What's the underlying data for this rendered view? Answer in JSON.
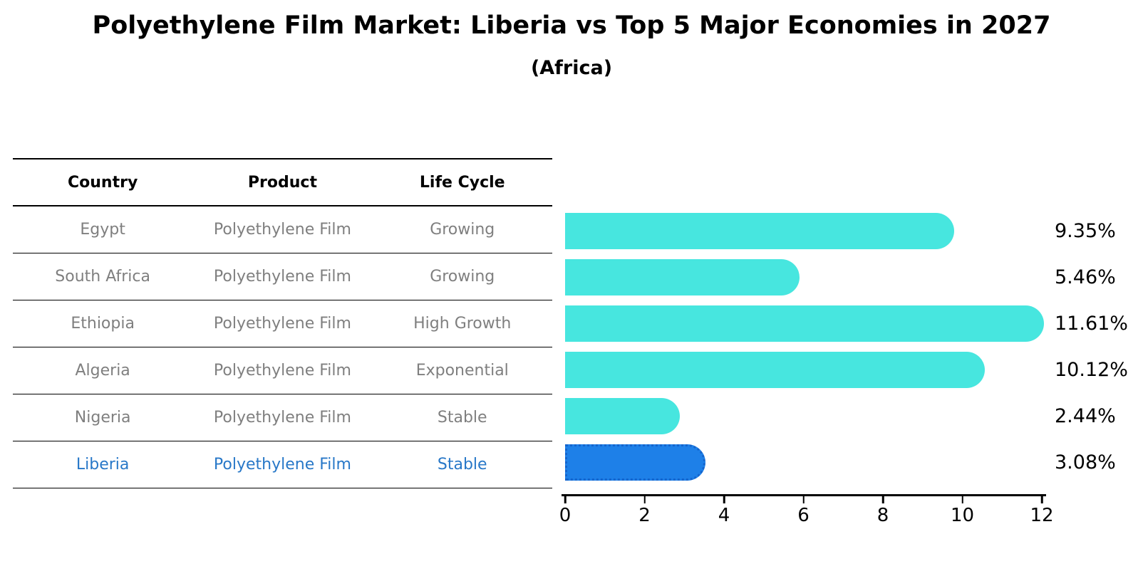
{
  "title": "Polyethylene Film Market: Liberia vs Top 5 Major Economies in 2027",
  "subtitle": "(Africa)",
  "table": {
    "headers": [
      "Country",
      "Product",
      "Life Cycle"
    ],
    "rows": [
      {
        "country": "Egypt",
        "product": "Polyethylene Film",
        "life_cycle": "Growing",
        "highlight": false
      },
      {
        "country": "South Africa",
        "product": "Polyethylene Film",
        "life_cycle": "Growing",
        "highlight": false
      },
      {
        "country": "Ethiopia",
        "product": "Polyethylene Film",
        "life_cycle": "High Growth",
        "highlight": false
      },
      {
        "country": "Algeria",
        "product": "Polyethylene Film",
        "life_cycle": "Exponential",
        "highlight": false
      },
      {
        "country": "Nigeria",
        "product": "Polyethylene Film",
        "life_cycle": "Stable",
        "highlight": false
      },
      {
        "country": "Liberia",
        "product": "Polyethylene Film",
        "life_cycle": "Stable",
        "highlight": true
      }
    ]
  },
  "chart_data": {
    "type": "bar",
    "orientation": "horizontal",
    "categories": [
      "Egypt",
      "South Africa",
      "Ethiopia",
      "Algeria",
      "Nigeria",
      "Liberia"
    ],
    "values": [
      9.35,
      5.46,
      11.61,
      10.12,
      2.44,
      3.08
    ],
    "value_labels": [
      "9.35%",
      "5.46%",
      "11.61%",
      "10.12%",
      "2.44%",
      "3.08%"
    ],
    "highlight_index": 5,
    "xlim": [
      0,
      12
    ],
    "xticks": [
      "0",
      "2",
      "4",
      "6",
      "8",
      "10",
      "12"
    ],
    "grid": false,
    "legend": "none",
    "colors": {
      "bar_default": "#47e6df",
      "bar_highlight": "#1e80e8",
      "bar_highlight_border": "#1565cd",
      "row_text": "#7f7f7f",
      "highlight_text": "#2878c8",
      "axis": "#000000"
    }
  }
}
